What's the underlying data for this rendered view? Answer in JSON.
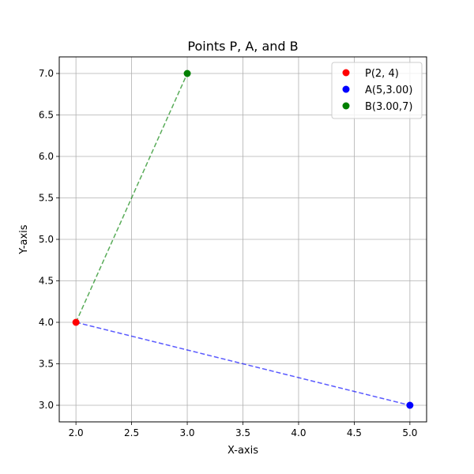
{
  "chart_data": {
    "type": "scatter",
    "title": "Points P, A, and B",
    "xlabel": "X-axis",
    "ylabel": "Y-axis",
    "xlim": [
      1.85,
      5.15
    ],
    "ylim": [
      2.8,
      7.2
    ],
    "xticks": [
      2.0,
      2.5,
      3.0,
      3.5,
      4.0,
      4.5,
      5.0
    ],
    "yticks": [
      3.0,
      3.5,
      4.0,
      4.5,
      5.0,
      5.5,
      6.0,
      6.5,
      7.0
    ],
    "grid": true,
    "legend_position": "top-right",
    "series": [
      {
        "name": "P(2, 4)",
        "x": [
          2
        ],
        "y": [
          4
        ],
        "color": "#ff0000"
      },
      {
        "name": "A(5,3.00)",
        "x": [
          5
        ],
        "y": [
          3
        ],
        "color": "#0000ff"
      },
      {
        "name": "B(3.00,7)",
        "x": [
          3
        ],
        "y": [
          7
        ],
        "color": "#008000"
      }
    ],
    "segments": [
      {
        "from": [
          2,
          4
        ],
        "to": [
          5,
          3
        ],
        "color": "#0000ff",
        "style": "dashed"
      },
      {
        "from": [
          2,
          4
        ],
        "to": [
          3,
          7
        ],
        "color": "#008000",
        "style": "dashed"
      }
    ]
  }
}
